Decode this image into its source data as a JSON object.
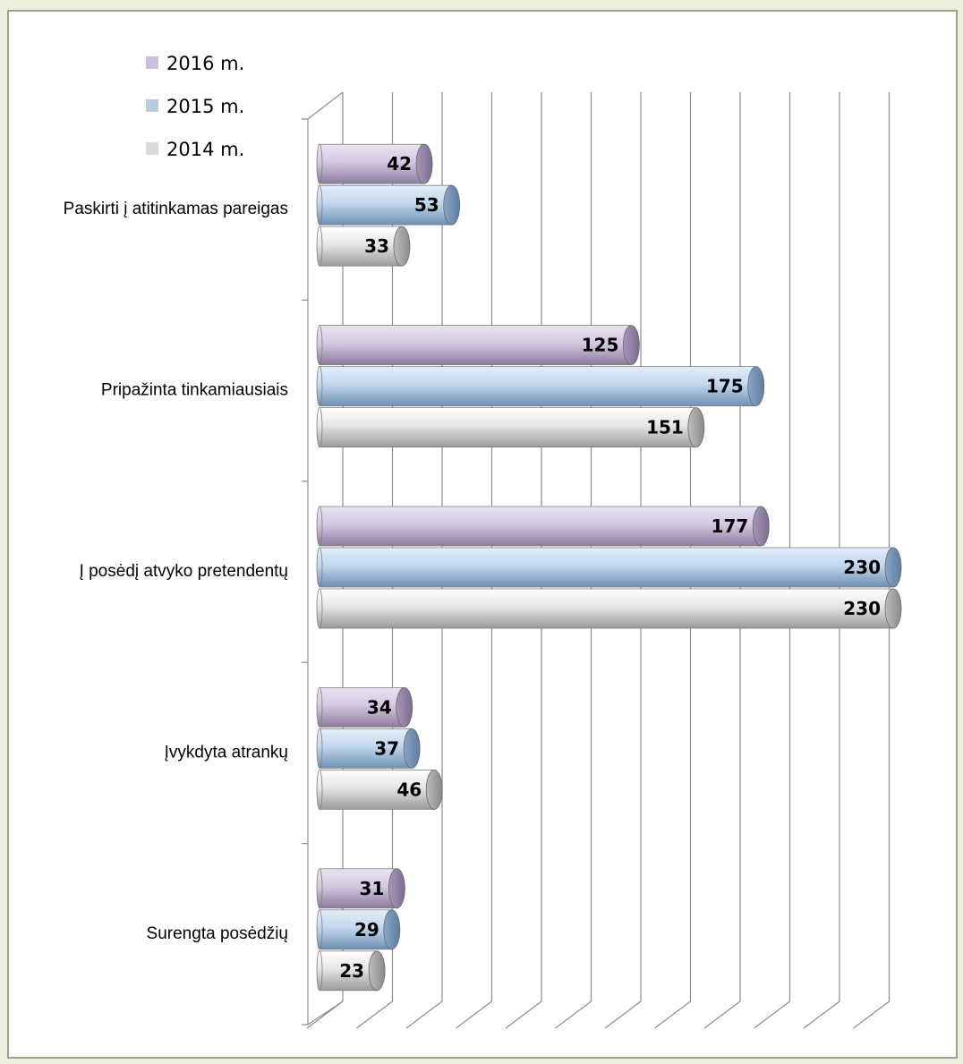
{
  "chart_data": {
    "type": "bar",
    "orientation": "horizontal",
    "style": "3d-cylinder",
    "categories": [
      "Paskirti į atitinkamas pareigas",
      "Pripažinta tinkamiausiais",
      "Į posėdį atvyko pretendentų",
      "Įvykdyta atrankų",
      "Surengta posėdžių"
    ],
    "series": [
      {
        "name": "2016 m.",
        "color": "#ccc0da",
        "values": [
          42,
          125,
          177,
          34,
          31
        ]
      },
      {
        "name": "2015 m.",
        "color": "#b8cce4",
        "values": [
          53,
          175,
          230,
          37,
          29
        ]
      },
      {
        "name": "2014 m.",
        "color": "#d9d9d9",
        "values": [
          33,
          151,
          230,
          46,
          23
        ]
      }
    ],
    "xlim": [
      0,
      230
    ],
    "gridlines": true,
    "legend_position": "top-left"
  }
}
